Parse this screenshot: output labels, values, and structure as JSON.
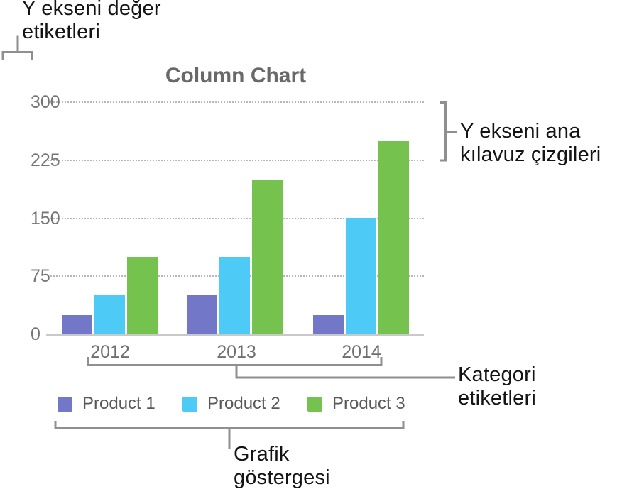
{
  "chart_data": {
    "type": "bar",
    "title": "Column Chart",
    "categories": [
      "2012",
      "2013",
      "2014"
    ],
    "series": [
      {
        "name": "Product 1",
        "color": "#7278c7",
        "values": [
          25,
          50,
          25
        ]
      },
      {
        "name": "Product 2",
        "color": "#4ecaf7",
        "values": [
          50,
          100,
          150
        ]
      },
      {
        "name": "Product 3",
        "color": "#76c24e",
        "values": [
          100,
          200,
          250
        ]
      }
    ],
    "y_ticks": [
      0,
      75,
      150,
      225,
      300
    ],
    "ylim": [
      0,
      300
    ],
    "xlabel": "",
    "ylabel": "",
    "grid": "horizontal-dotted",
    "legend_position": "bottom"
  },
  "annotations": {
    "y_value_labels": {
      "line1": "Y ekseni değer",
      "line2": "etiketleri"
    },
    "y_gridlines": {
      "line1": "Y ekseni ana",
      "line2": "kılavuz çizgileri"
    },
    "category_labels": {
      "line1": "Kategori",
      "line2": "etiketleri"
    },
    "chart_legend": {
      "line1": "Grafik",
      "line2": "göstergesi"
    }
  },
  "colors": {
    "bracket": "#8f8f8f",
    "axis_line": "#c9c9c9",
    "gridline": "#b7b7b7",
    "title_text": "#696969",
    "tick_text": "#757575",
    "category_text": "#6f6f6f",
    "legend_text": "#58585a",
    "annotation_text": "#141414"
  }
}
